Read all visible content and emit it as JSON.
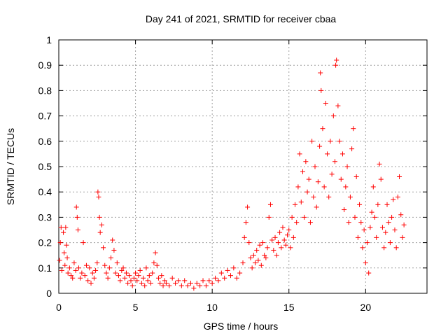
{
  "chart_data": {
    "type": "scatter",
    "title": "Day 241 of 2021, SRMTID for receiver cbaa",
    "xlabel": "GPS time / hours",
    "ylabel": "SRMTID / TECUs",
    "xlim": [
      0,
      24
    ],
    "ylim": [
      0,
      1
    ],
    "x_ticks": [
      0,
      5,
      10,
      15,
      20
    ],
    "x_tick_labels": [
      "0",
      "5",
      "10",
      "15",
      "20"
    ],
    "y_ticks": [
      0,
      0.1,
      0.2,
      0.3,
      0.4,
      0.5,
      0.6,
      0.7,
      0.8,
      0.9,
      1
    ],
    "y_tick_labels": [
      "0",
      "0.1",
      "0.2",
      "0.3",
      "0.4",
      "0.5",
      "0.6",
      "0.7",
      "0.8",
      "0.9",
      "1"
    ],
    "grid": true,
    "marker": "plus",
    "color": "#ff0000",
    "series": [
      {
        "name": "SRMTID",
        "points": [
          [
            0.05,
            0.13
          ],
          [
            0.1,
            0.2
          ],
          [
            0.15,
            0.26
          ],
          [
            0.2,
            0.09
          ],
          [
            0.3,
            0.24
          ],
          [
            0.35,
            0.16
          ],
          [
            0.4,
            0.11
          ],
          [
            0.45,
            0.26
          ],
          [
            0.5,
            0.19
          ],
          [
            0.55,
            0.14
          ],
          [
            0.6,
            0.08
          ],
          [
            0.7,
            0.1
          ],
          [
            0.8,
            0.07
          ],
          [
            0.9,
            0.06
          ],
          [
            1.0,
            0.12
          ],
          [
            1.1,
            0.09
          ],
          [
            1.15,
            0.34
          ],
          [
            1.2,
            0.3
          ],
          [
            1.25,
            0.25
          ],
          [
            1.3,
            0.1
          ],
          [
            1.4,
            0.06
          ],
          [
            1.5,
            0.08
          ],
          [
            1.6,
            0.2
          ],
          [
            1.7,
            0.07
          ],
          [
            1.8,
            0.11
          ],
          [
            1.9,
            0.05
          ],
          [
            2.0,
            0.1
          ],
          [
            2.1,
            0.04
          ],
          [
            2.2,
            0.08
          ],
          [
            2.3,
            0.06
          ],
          [
            2.4,
            0.09
          ],
          [
            2.5,
            0.12
          ],
          [
            2.55,
            0.4
          ],
          [
            2.6,
            0.38
          ],
          [
            2.65,
            0.3
          ],
          [
            2.7,
            0.24
          ],
          [
            2.8,
            0.27
          ],
          [
            2.9,
            0.18
          ],
          [
            3.0,
            0.11
          ],
          [
            3.1,
            0.08
          ],
          [
            3.2,
            0.06
          ],
          [
            3.3,
            0.1
          ],
          [
            3.4,
            0.14
          ],
          [
            3.5,
            0.21
          ],
          [
            3.6,
            0.17
          ],
          [
            3.7,
            0.08
          ],
          [
            3.8,
            0.12
          ],
          [
            3.9,
            0.07
          ],
          [
            4.0,
            0.05
          ],
          [
            4.1,
            0.09
          ],
          [
            4.2,
            0.1
          ],
          [
            4.3,
            0.06
          ],
          [
            4.4,
            0.08
          ],
          [
            4.5,
            0.04
          ],
          [
            4.6,
            0.07
          ],
          [
            4.7,
            0.05
          ],
          [
            4.8,
            0.03
          ],
          [
            4.9,
            0.06
          ],
          [
            5.0,
            0.08
          ],
          [
            5.1,
            0.05
          ],
          [
            5.2,
            0.07
          ],
          [
            5.3,
            0.09
          ],
          [
            5.4,
            0.04
          ],
          [
            5.5,
            0.06
          ],
          [
            5.6,
            0.03
          ],
          [
            5.7,
            0.1
          ],
          [
            5.8,
            0.05
          ],
          [
            5.9,
            0.07
          ],
          [
            6.0,
            0.04
          ],
          [
            6.1,
            0.08
          ],
          [
            6.2,
            0.12
          ],
          [
            6.3,
            0.16
          ],
          [
            6.4,
            0.11
          ],
          [
            6.5,
            0.06
          ],
          [
            6.6,
            0.04
          ],
          [
            6.7,
            0.07
          ],
          [
            6.8,
            0.03
          ],
          [
            6.9,
            0.05
          ],
          [
            7.0,
            0.04
          ],
          [
            7.2,
            0.03
          ],
          [
            7.4,
            0.06
          ],
          [
            7.6,
            0.04
          ],
          [
            7.8,
            0.05
          ],
          [
            8.0,
            0.03
          ],
          [
            8.2,
            0.05
          ],
          [
            8.4,
            0.03
          ],
          [
            8.6,
            0.04
          ],
          [
            8.8,
            0.02
          ],
          [
            9.0,
            0.04
          ],
          [
            9.2,
            0.03
          ],
          [
            9.4,
            0.05
          ],
          [
            9.6,
            0.03
          ],
          [
            9.8,
            0.05
          ],
          [
            10.0,
            0.04
          ],
          [
            10.2,
            0.06
          ],
          [
            10.4,
            0.05
          ],
          [
            10.6,
            0.08
          ],
          [
            10.8,
            0.06
          ],
          [
            11.0,
            0.09
          ],
          [
            11.2,
            0.07
          ],
          [
            11.4,
            0.1
          ],
          [
            11.6,
            0.06
          ],
          [
            11.8,
            0.08
          ],
          [
            12.0,
            0.12
          ],
          [
            12.1,
            0.22
          ],
          [
            12.2,
            0.28
          ],
          [
            12.3,
            0.34
          ],
          [
            12.4,
            0.2
          ],
          [
            12.5,
            0.14
          ],
          [
            12.6,
            0.1
          ],
          [
            12.7,
            0.15
          ],
          [
            12.8,
            0.12
          ],
          [
            12.9,
            0.17
          ],
          [
            13.0,
            0.13
          ],
          [
            13.1,
            0.19
          ],
          [
            13.2,
            0.11
          ],
          [
            13.3,
            0.2
          ],
          [
            13.4,
            0.15
          ],
          [
            13.5,
            0.14
          ],
          [
            13.6,
            0.18
          ],
          [
            13.7,
            0.3
          ],
          [
            13.8,
            0.35
          ],
          [
            13.9,
            0.21
          ],
          [
            14.0,
            0.17
          ],
          [
            14.1,
            0.22
          ],
          [
            14.2,
            0.15
          ],
          [
            14.3,
            0.2
          ],
          [
            14.4,
            0.24
          ],
          [
            14.5,
            0.18
          ],
          [
            14.6,
            0.26
          ],
          [
            14.7,
            0.21
          ],
          [
            14.8,
            0.19
          ],
          [
            14.9,
            0.23
          ],
          [
            15.0,
            0.25
          ],
          [
            15.1,
            0.18
          ],
          [
            15.2,
            0.3
          ],
          [
            15.3,
            0.22
          ],
          [
            15.4,
            0.35
          ],
          [
            15.5,
            0.28
          ],
          [
            15.6,
            0.42
          ],
          [
            15.7,
            0.55
          ],
          [
            15.8,
            0.36
          ],
          [
            15.9,
            0.48
          ],
          [
            16.0,
            0.3
          ],
          [
            16.1,
            0.52
          ],
          [
            16.2,
            0.4
          ],
          [
            16.3,
            0.45
          ],
          [
            16.4,
            0.28
          ],
          [
            16.5,
            0.6
          ],
          [
            16.6,
            0.38
          ],
          [
            16.7,
            0.5
          ],
          [
            16.8,
            0.34
          ],
          [
            16.9,
            0.44
          ],
          [
            17.0,
            0.58
          ],
          [
            17.05,
            0.87
          ],
          [
            17.1,
            0.8
          ],
          [
            17.2,
            0.65
          ],
          [
            17.3,
            0.42
          ],
          [
            17.4,
            0.75
          ],
          [
            17.5,
            0.55
          ],
          [
            17.6,
            0.38
          ],
          [
            17.7,
            0.6
          ],
          [
            17.8,
            0.47
          ],
          [
            17.9,
            0.7
          ],
          [
            18.0,
            0.52
          ],
          [
            18.05,
            0.9
          ],
          [
            18.1,
            0.92
          ],
          [
            18.2,
            0.74
          ],
          [
            18.3,
            0.6
          ],
          [
            18.4,
            0.45
          ],
          [
            18.5,
            0.55
          ],
          [
            18.6,
            0.33
          ],
          [
            18.7,
            0.42
          ],
          [
            18.8,
            0.5
          ],
          [
            18.9,
            0.28
          ],
          [
            19.0,
            0.38
          ],
          [
            19.1,
            0.57
          ],
          [
            19.2,
            0.65
          ],
          [
            19.3,
            0.3
          ],
          [
            19.4,
            0.46
          ],
          [
            19.5,
            0.22
          ],
          [
            19.6,
            0.35
          ],
          [
            19.7,
            0.28
          ],
          [
            19.8,
            0.18
          ],
          [
            19.9,
            0.25
          ],
          [
            20.0,
            0.12
          ],
          [
            20.1,
            0.2
          ],
          [
            20.2,
            0.08
          ],
          [
            20.3,
            0.26
          ],
          [
            20.4,
            0.32
          ],
          [
            20.5,
            0.42
          ],
          [
            20.6,
            0.3
          ],
          [
            20.7,
            0.22
          ],
          [
            20.8,
            0.35
          ],
          [
            20.9,
            0.51
          ],
          [
            21.0,
            0.45
          ],
          [
            21.1,
            0.26
          ],
          [
            21.2,
            0.18
          ],
          [
            21.3,
            0.24
          ],
          [
            21.4,
            0.35
          ],
          [
            21.5,
            0.28
          ],
          [
            21.6,
            0.2
          ],
          [
            21.7,
            0.3
          ],
          [
            21.8,
            0.37
          ],
          [
            21.9,
            0.25
          ],
          [
            22.0,
            0.18
          ],
          [
            22.1,
            0.38
          ],
          [
            22.2,
            0.46
          ],
          [
            22.3,
            0.31
          ],
          [
            22.4,
            0.22
          ],
          [
            22.5,
            0.27
          ]
        ]
      }
    ]
  }
}
